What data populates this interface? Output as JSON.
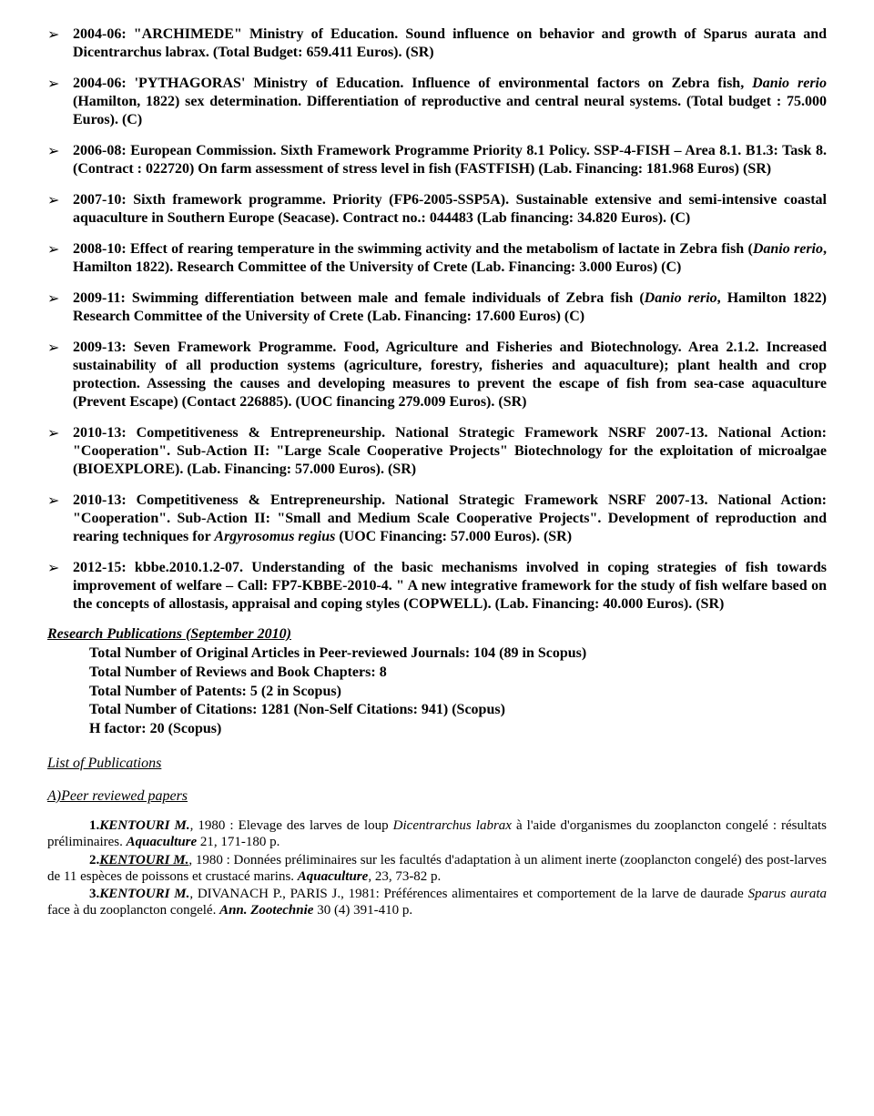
{
  "colors": {
    "text": "#000000",
    "background": "#ffffff"
  },
  "typography": {
    "family": "Times New Roman",
    "body_size_pt": 12,
    "list_weight": "bold",
    "line_height": 1.25
  },
  "bullets": {
    "marker": "➢",
    "items": [
      {
        "text": "2004-06: \"ARCHIMEDE\" Ministry of Education. Sound influence on behavior and growth of Sparus aurata and Dicentrarchus labrax. (Total Budget: 659.411 Euros). (SR)"
      },
      {
        "text": "2004-06: 'PYTHAGORAS' Ministry of Education. Influence of environmental factors on Zebra fish, {i}Danio rerio{/i} (Hamilton, 1822) sex determination. Differentiation of reproductive and central neural systems. (Total budget : 75.000 Euros). (C)"
      },
      {
        "text": "2006-08: European Commission.  Sixth Framework Programme Priority 8.1 Policy. SSP-4-FISH – Area 8.1. B1.3: Task 8. (Contract : 022720) On farm assessment of stress level in fish (FASTFISH) (Lab. Financing: 181.968 Euros) (SR)"
      },
      {
        "text": "2007-10: Sixth framework programme. Priority (FP6-2005-SSP5A). Sustainable extensive and semi-intensive coastal aquaculture in Southern Europe (Seacase). Contract no.: 044483 (Lab financing: 34.820 Euros). (C)"
      },
      {
        "text": "2008-10: Effect of rearing temperature in the swimming activity and the metabolism of lactate in Zebra fish ({i}Danio rerio{/i}, Hamilton 1822). Research Committee of the University of Crete (Lab. Financing: 3.000 Euros) (C)"
      },
      {
        "text": "2009-11: Swimming differentiation between male and female individuals of Zebra fish ({i}Danio rerio{/i}, Hamilton 1822) Research Committee of the University of Crete (Lab. Financing: 17.600  Euros)  (C)"
      },
      {
        "text": "2009-13: Seven Framework Programme. Food, Agriculture and Fisheries and Biotechnology. Area 2.1.2. Increased sustainability of all production systems (agriculture, forestry, fisheries and aquaculture); plant health and crop protection. Assessing the causes and developing measures to prevent the escape of fish from sea-case aquaculture (Prevent Escape) (Contact  226885). (UOC financing 279.009 Euros). (SR)"
      },
      {
        "text": "2010-13: Competitiveness & Entrepreneurship. National Strategic Framework NSRF 2007-13. National Action: \"Cooperation\". Sub-Action II: \"Large Scale Cooperative Projects\" Biotechnology for the exploitation of microalgae (BIOEXPLORE). (Lab. Financing: 57.000 Euros).  (SR)"
      },
      {
        "text": "2010-13: Competitiveness & Entrepreneurship. National Strategic Framework NSRF 2007-13. National Action: \"Cooperation\". Sub-Action II: \"Small and Medium Scale Cooperative Projects\". Development of reproduction and rearing techniques for {i}Argyrosomus regius{/i} (UOC Financing: 57.000 Euros).  (SR)"
      },
      {
        "text": "2012-15: kbbe.2010.1.2-07. Understanding of the basic mechanisms involved in coping strategies of fish towards improvement of welfare – Call: FP7-KBBE-2010-4. \" A new integrative framework for the study of fish welfare based on the concepts of allostasis, appraisal and coping styles (COPWELL). (Lab. Financing: 40.000 Euros).  (SR)"
      }
    ]
  },
  "pub_summary": {
    "heading": "Research Publications (September 2010)",
    "lines": [
      "Total Number of Original Articles in Peer-reviewed Journals: 104 (89 in Scopus)",
      "Total Number of Reviews and Book Chapters: 8",
      "Total Number of Patents: 5 (2 in Scopus)",
      "Total Number of Citations: 1281 (Non-Self Citations: 941) (Scopus)",
      "H factor: 20 (Scopus)"
    ]
  },
  "list_heading": "List of Publications",
  "section_a_heading": "A)Peer reviewed papers",
  "refs": [
    {
      "num": "1.",
      "author": "KENTOURI M.",
      "author_underline": false,
      "year_sep": ",",
      "rest": " 1980 : Elevage des larves de loup {i}Dicentrarchus  labrax{/i} à l'aide d'organismes du zooplancton congelé : résultats préliminaires. {j}Aquaculture{/j} 21, 171-180 p."
    },
    {
      "num": "2.",
      "author": "KENTOURI M.",
      "author_underline": true,
      "year_sep": ",",
      "rest": " 1980 : Données préliminaires sur les facultés d'adaptation à un aliment inerte (zooplancton congelé) des post-larves de 11 espèces de poissons et crustacé marins. {j}Aquaculture{/j}, 23, 73-82 p."
    },
    {
      "num": "3.",
      "author": "KENTOURI M.",
      "author_underline": false,
      "year_sep": ",",
      "rest": " DIVANACH P., PARIS J.,  1981: Préférences alimentaires et comportement de la larve de daurade {i}Sparus aurata{/i} face à du zooplancton congelé.  {j}Ann.  Zootechnie{/j} 30 (4) 391-410 p."
    }
  ]
}
